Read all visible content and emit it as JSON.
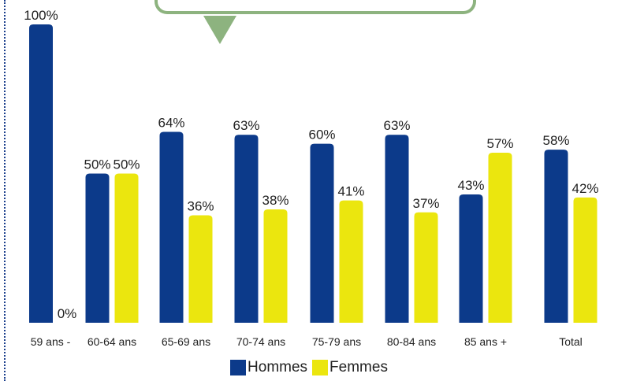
{
  "chart_data": {
    "type": "bar",
    "categories": [
      "59 ans -",
      "60-64 ans",
      "65-69 ans",
      "70-74 ans",
      "75-79 ans",
      "80-84 ans",
      "85 ans +",
      "Total"
    ],
    "series": [
      {
        "name": "Hommes",
        "values": [
          100,
          50,
          64,
          63,
          60,
          63,
          43,
          58
        ],
        "labels": [
          "100%",
          "50%",
          "64%",
          "63%",
          "60%",
          "63%",
          "43%",
          "58%"
        ],
        "color": "#0c3a8a"
      },
      {
        "name": "Femmes",
        "values": [
          0,
          50,
          36,
          38,
          41,
          37,
          57,
          42
        ],
        "labels": [
          "0%",
          "50%",
          "36%",
          "38%",
          "41%",
          "37%",
          "57%",
          "42%"
        ],
        "color": "#ebe60e"
      }
    ],
    "ylim": [
      0,
      100
    ],
    "grid": false,
    "legend": "bottom",
    "title": "",
    "xlabel": "",
    "ylabel": ""
  },
  "legend": {
    "hommes": "Hommes",
    "femmes": "Femmes"
  },
  "colors": {
    "hommes": "#0c3a8a",
    "femmes": "#ebe60e",
    "callout": "#8db37f"
  }
}
